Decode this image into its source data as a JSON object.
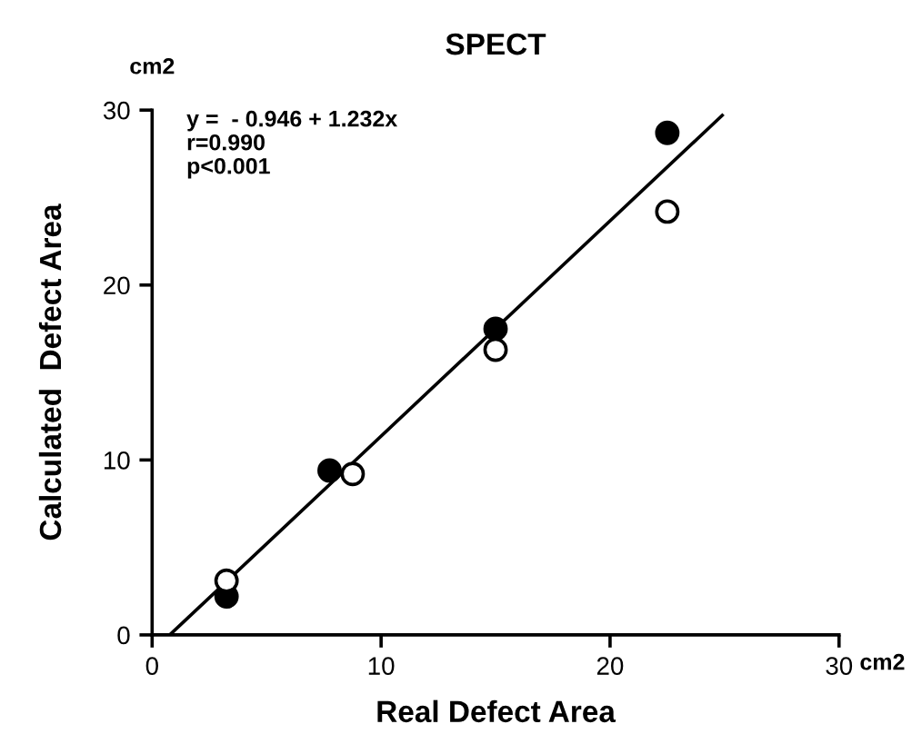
{
  "chart_data": {
    "type": "scatter",
    "title": "SPECT",
    "xlabel": "Real Defect Area",
    "ylabel": "Calculated  Defect Area",
    "xlim": [
      0,
      30
    ],
    "ylim": [
      0,
      30
    ],
    "xticks": [
      0,
      10,
      20,
      30
    ],
    "yticks": [
      0,
      10,
      20,
      30
    ],
    "grid": false,
    "legend": false,
    "marker": "circle",
    "annotations": [
      "y =  - 0.946 + 1.232x\nr=0.990\np<0.001",
      "cm2",
      "cm2"
    ],
    "series": [
      {
        "color": "#000000",
        "x": [
          3.25,
          7.75,
          15.0,
          22.5
        ],
        "values": [
          2.2,
          9.4,
          17.5,
          28.7
        ]
      },
      {
        "color": "#ffffff",
        "x": [
          3.25,
          8.76,
          15.0,
          22.5
        ],
        "values": [
          3.1,
          9.2,
          16.3,
          24.2
        ]
      },
      {
        "type": "line",
        "marker": "none",
        "color": "#000000",
        "x": [
          0.77,
          24.9
        ],
        "values": [
          0,
          29.7
        ]
      }
    ]
  }
}
